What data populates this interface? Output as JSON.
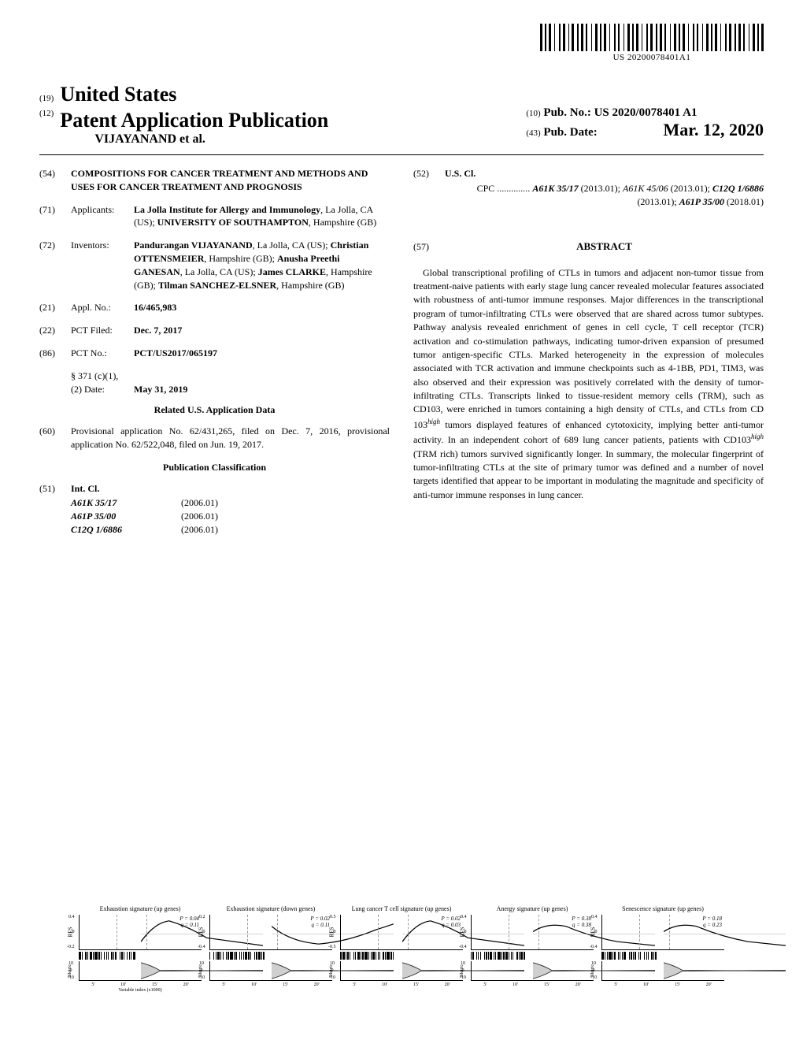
{
  "barcode_text": "US 20200078401A1",
  "header": {
    "num19": "(19)",
    "country": "United States",
    "num12": "(12)",
    "pub_type": "Patent Application Publication",
    "authors": "VIJAYANAND et al.",
    "num10": "(10)",
    "pub_no_label": "Pub. No.:",
    "pub_no": "US 2020/0078401 A1",
    "num43": "(43)",
    "pub_date_label": "Pub. Date:",
    "pub_date": "Mar. 12, 2020"
  },
  "fields": {
    "f54": {
      "num": "(54)",
      "title": "COMPOSITIONS FOR CANCER TREATMENT AND METHODS AND USES FOR CANCER TREATMENT AND PROGNOSIS"
    },
    "f71": {
      "num": "(71)",
      "label": "Applicants:",
      "content": "La Jolla Institute for Allergy and Immunology",
      "loc1": ", La Jolla, CA (US); ",
      "content2": "UNIVERSITY OF SOUTHAMPTON",
      "loc2": ", Hampshire (GB)"
    },
    "f72": {
      "num": "(72)",
      "label": "Inventors:",
      "i1": "Pandurangan VIJAYANAND",
      "l1": ", La Jolla, CA (US); ",
      "i2": "Christian OTTENSMEIER",
      "l2": ", Hampshire (GB); ",
      "i3": "Anusha Preethi GANESAN",
      "l3": ", La Jolla, CA (US); ",
      "i4": "James CLARKE",
      "l4": ", Hampshire (GB); ",
      "i5": "Tilman SANCHEZ-ELSNER",
      "l5": ", Hampshire (GB)"
    },
    "f21": {
      "num": "(21)",
      "label": "Appl. No.:",
      "value": "16/465,983"
    },
    "f22": {
      "num": "(22)",
      "label": "PCT Filed:",
      "value": "Dec. 7, 2017"
    },
    "f86": {
      "num": "(86)",
      "label": "PCT No.:",
      "value": "PCT/US2017/065197",
      "sub1": "§ 371 (c)(1),",
      "sub2": "(2) Date:",
      "sub2v": "May 31, 2019"
    },
    "related_heading": "Related U.S. Application Data",
    "f60": {
      "num": "(60)",
      "content": "Provisional application No. 62/431,265, filed on Dec. 7, 2016, provisional application No. 62/522,048, filed on Jun. 19, 2017."
    },
    "pub_class_heading": "Publication Classification",
    "f51": {
      "num": "(51)",
      "label": "Int. Cl.",
      "rows": [
        {
          "code": "A61K 35/17",
          "date": "(2006.01)"
        },
        {
          "code": "A61P 35/00",
          "date": "(2006.01)"
        },
        {
          "code": "C12Q 1/6886",
          "date": "(2006.01)"
        }
      ]
    },
    "f52": {
      "num": "(52)",
      "label": "U.S. Cl.",
      "cpc_label": "CPC ..............",
      "c1": "A61K 35/17",
      "d1": " (2013.01); ",
      "c2": "A61K 45/06",
      "d2": " (2013.01); ",
      "c3": "C12Q 1/6886",
      "d3": " (2013.01); ",
      "c4": "A61P 35/00",
      "d4": " (2018.01)"
    },
    "f57": {
      "num": "(57)",
      "label": "ABSTRACT"
    }
  },
  "abstract": "Global transcriptional profiling of CTLs in tumors and adjacent non-tumor tissue from treatment-naive patients with early stage lung cancer revealed molecular features associated with robustness of anti-tumor immune responses. Major differences in the transcriptional program of tumor-infiltrating CTLs were observed that are shared across tumor subtypes. Pathway analysis revealed enrichment of genes in cell cycle, T cell receptor (TCR) activation and co-stimulation pathways, indicating tumor-driven expansion of presumed tumor antigen-specific CTLs. Marked heterogeneity in the expression of molecules associated with TCR activation and immune checkpoints such as 4-1BB, PD1, TIM3, was also observed and their expression was positively correlated with the density of tumor-infiltrating CTLs. Transcripts linked to tissue-resident memory cells (TRM), such as CD103, were enriched in tumors containing a high density of CTLs, and CTLs from CD 103",
  "abstract_sup1": "high",
  "abstract2": " tumors displayed features of enhanced cytotoxicity, implying better anti-tumor activity. In an independent cohort of 689 lung cancer patients, patients with CD103",
  "abstract_sup2": "high",
  "abstract3": " (TRM rich) tumors survived significantly longer. In summary, the molecular fingerprint of tumor-infiltrating CTLs at the site of primary tumor was defined and a number of novel targets identified that appear to be important in modulating the magnitude and specificity of anti-tumor immune responses in lung cancer.",
  "charts": [
    {
      "title": "Exhaustion signature (up genes)",
      "p": "P = 0.04",
      "q": "q = 0.11",
      "ylim": [
        -0.2,
        0.4
      ],
      "curve_type": "rise-fall"
    },
    {
      "title": "Exhaustion signature (down genes)",
      "p": "P = 0.02",
      "q": "q = 0.11",
      "ylim": [
        -0.4,
        0.2
      ],
      "curve_type": "fall-rise"
    },
    {
      "title": "Lung cancer T cell signature (up genes)",
      "p": "P = 0.02",
      "q": "q = 0.03",
      "ylim": [
        -0.5,
        0.5
      ],
      "curve_type": "rise-fall"
    },
    {
      "title": "Anergy signature (up genes)",
      "p": "P = 0.38",
      "q": "q = 0.38",
      "ylim": [
        -0.4,
        0.4
      ],
      "curve_type": "bump-fall"
    },
    {
      "title": "Senescence signature (up genes)",
      "p": "P = 0.18",
      "q": "q = 0.23",
      "ylim": [
        -0.4,
        0.4
      ],
      "curve_type": "bump-fall"
    }
  ],
  "chart_common": {
    "res_label": "RES",
    "metric_label": "Metric",
    "metric_yticks": [
      "10",
      "0",
      "-10"
    ],
    "xticks": [
      "5'",
      "10'",
      "15'",
      "20'"
    ],
    "xlabel": "Variable index (x1000)"
  }
}
